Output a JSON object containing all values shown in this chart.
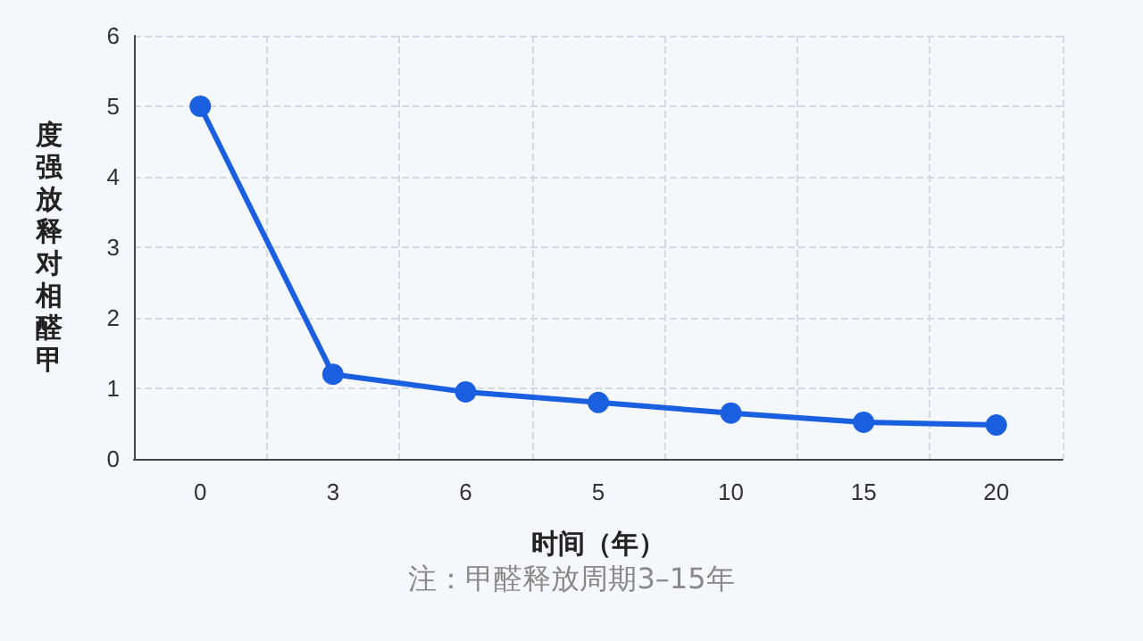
{
  "chart_data": {
    "type": "line",
    "xlabel": "时间（年）",
    "ylabel": "度强放释对相醛甲",
    "categories": [
      "0",
      "3",
      "6",
      "5",
      "10",
      "15",
      "20"
    ],
    "series": [
      {
        "color": "#1a5fe0",
        "values": [
          5,
          1.2,
          0.95,
          0.8,
          0.65,
          0.52,
          0.48
        ]
      }
    ],
    "ylim": [
      0,
      6
    ],
    "yticks": [
      0,
      1,
      2,
      3,
      4,
      5,
      6
    ],
    "grid": true,
    "marker": "circle",
    "line_style": "solid",
    "annotations": [
      "注：甲醛释放周期3–15年"
    ]
  }
}
